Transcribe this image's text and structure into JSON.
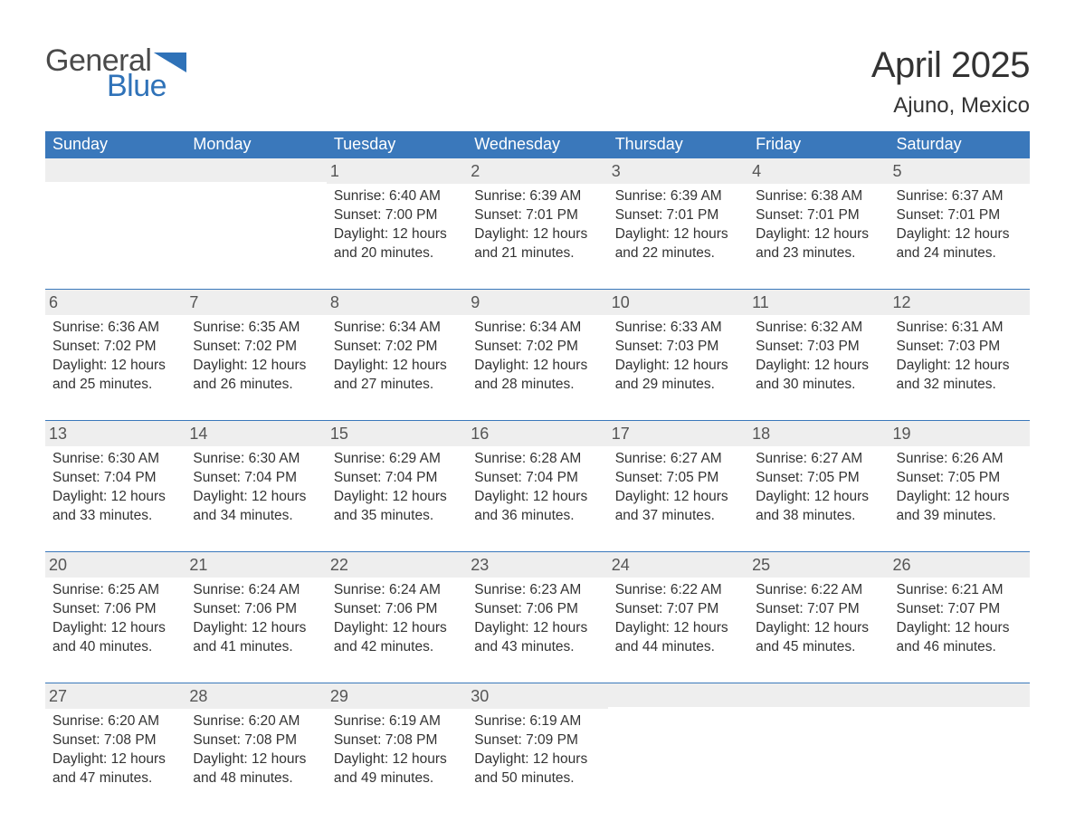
{
  "logo": {
    "word1": "General",
    "word2": "Blue",
    "triangle_color": "#2f72b8"
  },
  "title": "April 2025",
  "location": "Ajuno, Mexico",
  "colors": {
    "header_bg": "#3a78bb",
    "header_text": "#ffffff",
    "daynum_bg": "#eeeeee",
    "daynum_text": "#555555",
    "body_text": "#333333",
    "row_border": "#3a78bb",
    "page_bg": "#ffffff"
  },
  "typography": {
    "title_fontsize": 40,
    "location_fontsize": 24,
    "dow_fontsize": 18,
    "daynum_fontsize": 18,
    "body_fontsize": 15.5,
    "font_family": "Segoe UI"
  },
  "days_of_week": [
    "Sunday",
    "Monday",
    "Tuesday",
    "Wednesday",
    "Thursday",
    "Friday",
    "Saturday"
  ],
  "weeks": [
    [
      {
        "num": "",
        "lines": [
          "",
          "",
          "",
          ""
        ]
      },
      {
        "num": "",
        "lines": [
          "",
          "",
          "",
          ""
        ]
      },
      {
        "num": "1",
        "lines": [
          "Sunrise: 6:40 AM",
          "Sunset: 7:00 PM",
          "Daylight: 12 hours",
          "and 20 minutes."
        ]
      },
      {
        "num": "2",
        "lines": [
          "Sunrise: 6:39 AM",
          "Sunset: 7:01 PM",
          "Daylight: 12 hours",
          "and 21 minutes."
        ]
      },
      {
        "num": "3",
        "lines": [
          "Sunrise: 6:39 AM",
          "Sunset: 7:01 PM",
          "Daylight: 12 hours",
          "and 22 minutes."
        ]
      },
      {
        "num": "4",
        "lines": [
          "Sunrise: 6:38 AM",
          "Sunset: 7:01 PM",
          "Daylight: 12 hours",
          "and 23 minutes."
        ]
      },
      {
        "num": "5",
        "lines": [
          "Sunrise: 6:37 AM",
          "Sunset: 7:01 PM",
          "Daylight: 12 hours",
          "and 24 minutes."
        ]
      }
    ],
    [
      {
        "num": "6",
        "lines": [
          "Sunrise: 6:36 AM",
          "Sunset: 7:02 PM",
          "Daylight: 12 hours",
          "and 25 minutes."
        ]
      },
      {
        "num": "7",
        "lines": [
          "Sunrise: 6:35 AM",
          "Sunset: 7:02 PM",
          "Daylight: 12 hours",
          "and 26 minutes."
        ]
      },
      {
        "num": "8",
        "lines": [
          "Sunrise: 6:34 AM",
          "Sunset: 7:02 PM",
          "Daylight: 12 hours",
          "and 27 minutes."
        ]
      },
      {
        "num": "9",
        "lines": [
          "Sunrise: 6:34 AM",
          "Sunset: 7:02 PM",
          "Daylight: 12 hours",
          "and 28 minutes."
        ]
      },
      {
        "num": "10",
        "lines": [
          "Sunrise: 6:33 AM",
          "Sunset: 7:03 PM",
          "Daylight: 12 hours",
          "and 29 minutes."
        ]
      },
      {
        "num": "11",
        "lines": [
          "Sunrise: 6:32 AM",
          "Sunset: 7:03 PM",
          "Daylight: 12 hours",
          "and 30 minutes."
        ]
      },
      {
        "num": "12",
        "lines": [
          "Sunrise: 6:31 AM",
          "Sunset: 7:03 PM",
          "Daylight: 12 hours",
          "and 32 minutes."
        ]
      }
    ],
    [
      {
        "num": "13",
        "lines": [
          "Sunrise: 6:30 AM",
          "Sunset: 7:04 PM",
          "Daylight: 12 hours",
          "and 33 minutes."
        ]
      },
      {
        "num": "14",
        "lines": [
          "Sunrise: 6:30 AM",
          "Sunset: 7:04 PM",
          "Daylight: 12 hours",
          "and 34 minutes."
        ]
      },
      {
        "num": "15",
        "lines": [
          "Sunrise: 6:29 AM",
          "Sunset: 7:04 PM",
          "Daylight: 12 hours",
          "and 35 minutes."
        ]
      },
      {
        "num": "16",
        "lines": [
          "Sunrise: 6:28 AM",
          "Sunset: 7:04 PM",
          "Daylight: 12 hours",
          "and 36 minutes."
        ]
      },
      {
        "num": "17",
        "lines": [
          "Sunrise: 6:27 AM",
          "Sunset: 7:05 PM",
          "Daylight: 12 hours",
          "and 37 minutes."
        ]
      },
      {
        "num": "18",
        "lines": [
          "Sunrise: 6:27 AM",
          "Sunset: 7:05 PM",
          "Daylight: 12 hours",
          "and 38 minutes."
        ]
      },
      {
        "num": "19",
        "lines": [
          "Sunrise: 6:26 AM",
          "Sunset: 7:05 PM",
          "Daylight: 12 hours",
          "and 39 minutes."
        ]
      }
    ],
    [
      {
        "num": "20",
        "lines": [
          "Sunrise: 6:25 AM",
          "Sunset: 7:06 PM",
          "Daylight: 12 hours",
          "and 40 minutes."
        ]
      },
      {
        "num": "21",
        "lines": [
          "Sunrise: 6:24 AM",
          "Sunset: 7:06 PM",
          "Daylight: 12 hours",
          "and 41 minutes."
        ]
      },
      {
        "num": "22",
        "lines": [
          "Sunrise: 6:24 AM",
          "Sunset: 7:06 PM",
          "Daylight: 12 hours",
          "and 42 minutes."
        ]
      },
      {
        "num": "23",
        "lines": [
          "Sunrise: 6:23 AM",
          "Sunset: 7:06 PM",
          "Daylight: 12 hours",
          "and 43 minutes."
        ]
      },
      {
        "num": "24",
        "lines": [
          "Sunrise: 6:22 AM",
          "Sunset: 7:07 PM",
          "Daylight: 12 hours",
          "and 44 minutes."
        ]
      },
      {
        "num": "25",
        "lines": [
          "Sunrise: 6:22 AM",
          "Sunset: 7:07 PM",
          "Daylight: 12 hours",
          "and 45 minutes."
        ]
      },
      {
        "num": "26",
        "lines": [
          "Sunrise: 6:21 AM",
          "Sunset: 7:07 PM",
          "Daylight: 12 hours",
          "and 46 minutes."
        ]
      }
    ],
    [
      {
        "num": "27",
        "lines": [
          "Sunrise: 6:20 AM",
          "Sunset: 7:08 PM",
          "Daylight: 12 hours",
          "and 47 minutes."
        ]
      },
      {
        "num": "28",
        "lines": [
          "Sunrise: 6:20 AM",
          "Sunset: 7:08 PM",
          "Daylight: 12 hours",
          "and 48 minutes."
        ]
      },
      {
        "num": "29",
        "lines": [
          "Sunrise: 6:19 AM",
          "Sunset: 7:08 PM",
          "Daylight: 12 hours",
          "and 49 minutes."
        ]
      },
      {
        "num": "30",
        "lines": [
          "Sunrise: 6:19 AM",
          "Sunset: 7:09 PM",
          "Daylight: 12 hours",
          "and 50 minutes."
        ]
      },
      {
        "num": "",
        "lines": [
          "",
          "",
          "",
          ""
        ]
      },
      {
        "num": "",
        "lines": [
          "",
          "",
          "",
          ""
        ]
      },
      {
        "num": "",
        "lines": [
          "",
          "",
          "",
          ""
        ]
      }
    ]
  ]
}
